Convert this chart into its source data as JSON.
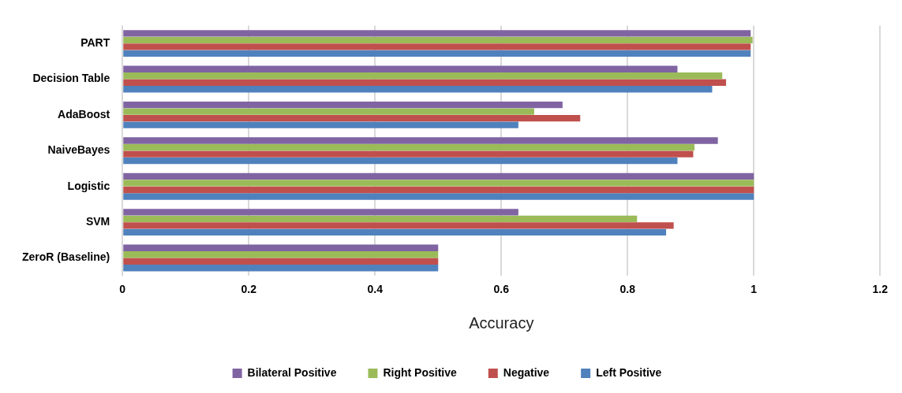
{
  "chart_data": {
    "type": "bar",
    "orientation": "horizontal",
    "xlabel": "Accuracy",
    "categories": [
      "PART",
      "Decision Table",
      "AdaBoost",
      "NaiveBayes",
      "Logistic",
      "SVM",
      "ZeroR (Baseline)"
    ],
    "series": [
      {
        "name": "Bilateral Positive",
        "color": "#8064a2",
        "values": [
          0.995,
          0.879,
          0.697,
          0.943,
          1,
          0.627,
          0.5
        ]
      },
      {
        "name": "Right Positive",
        "color": "#9bbb59",
        "values": [
          0.998,
          0.95,
          0.652,
          0.906,
          1,
          0.815,
          0.5
        ]
      },
      {
        "name": "Negative",
        "color": "#c0504d",
        "values": [
          0.995,
          0.956,
          0.725,
          0.904,
          1,
          0.873,
          0.5
        ]
      },
      {
        "name": "Left Positive",
        "color": "#4f81bd",
        "values": [
          0.995,
          0.934,
          0.627,
          0.879,
          1,
          0.861,
          0.5
        ]
      }
    ],
    "xlim": [
      0,
      1.2
    ],
    "xticks": [
      0,
      0.2,
      0.4,
      0.6,
      0.8,
      1,
      1.2
    ],
    "grid": "x",
    "legend": "bottom"
  }
}
